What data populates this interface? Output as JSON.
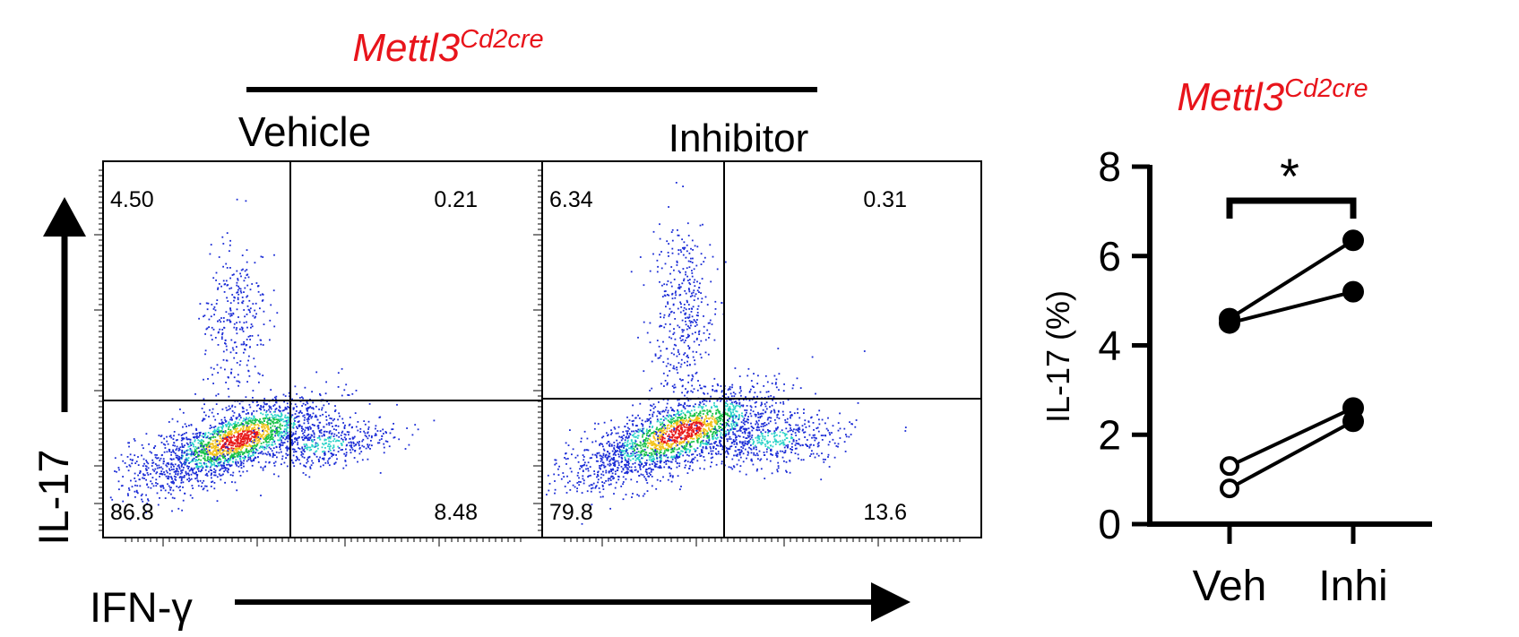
{
  "colors": {
    "accent": "#e8141b",
    "ink": "#000000",
    "dot_low": "#1a2bd6",
    "dot_mid": "#19c24a",
    "dot_high": "#e81a1a"
  },
  "figure": {
    "title_main": "Mettl3",
    "title_sup": "Cd2cre",
    "x_axis_label": "IFN-γ",
    "y_axis_label": "IL-17"
  },
  "panels": [
    {
      "label": "Vehicle",
      "quadrants": {
        "ul": "4.50",
        "ur": "0.21",
        "ll": "86.8",
        "lr": "8.48"
      }
    },
    {
      "label": "Inhibitor",
      "quadrants": {
        "ul": "6.34",
        "ur": "0.31",
        "ll": "79.8",
        "lr": "13.6"
      }
    }
  ],
  "chart_data": {
    "type": "scatter",
    "subtype": "paired-points",
    "title": "Mettl3Cd2cre",
    "title_main": "Mettl3",
    "title_sup": "Cd2cre",
    "xlabel": "",
    "ylabel": "IL-17 (%)",
    "categories": [
      "Veh",
      "Inhi"
    ],
    "ylim": [
      0,
      8
    ],
    "yticks": [
      "0",
      "2",
      "4",
      "6",
      "8"
    ],
    "significance": "*",
    "pairs": [
      {
        "veh": 4.6,
        "inhi": 6.35,
        "veh_marker": "filled",
        "inhi_marker": "filled"
      },
      {
        "veh": 4.5,
        "inhi": 5.2,
        "veh_marker": "filled",
        "inhi_marker": "filled"
      },
      {
        "veh": 1.3,
        "inhi": 2.6,
        "veh_marker": "open",
        "inhi_marker": "filled"
      },
      {
        "veh": 0.8,
        "inhi": 2.3,
        "veh_marker": "open",
        "inhi_marker": "filled"
      }
    ]
  }
}
